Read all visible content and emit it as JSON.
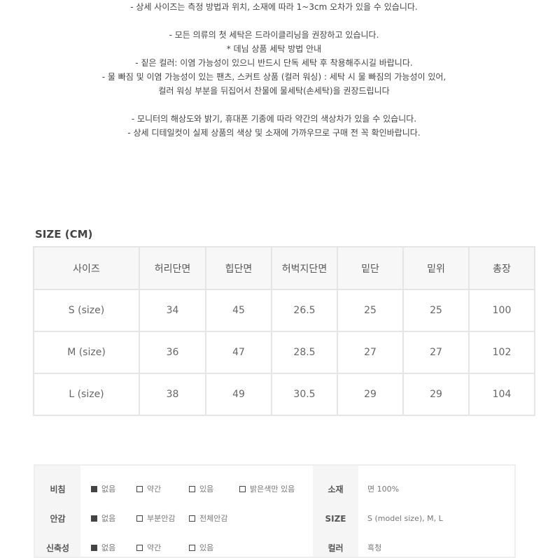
{
  "notes": [
    "- 상세 사이즈는 측정 방법과 위치, 소재에 따라 1~3cm 오차가 있을 수 있습니다.",
    "",
    "- 모든 의류의 첫 세탁은 드라이클리닝을 권장하고 있습니다.",
    "* 데님 상품 세탁 방법 안내",
    "- 짙은 컬러: 이염 가능성이 있으니 반드시 단독 세탁 후 착용해주시길 바랍니다.",
    "- 물 빠짐 및 이염 가능성이 있는 팬츠, 스커트 상품 (컬러 워싱) : 세탁 시 물 빠짐의 가능성이 있어,",
    "컬러 워싱 부분을 뒤집어서 찬물에 물세탁(손세탁)을 권장드립니다",
    "",
    "- 모니터의 해상도와 밝기, 휴대폰 기종에 따라 약간의 색상차가 있을 수 있습니다.",
    "- 상세 디테일컷이 실제 상품의 색상 및 소재에 가까우므로 구매 전 꼭 확인바랍니다."
  ],
  "size_title": "SIZE (CM)",
  "size_table": {
    "headers": [
      "사이즈",
      "허리단면",
      "힙단면",
      "허벅지단면",
      "밑단",
      "밑위",
      "총장"
    ],
    "rows": [
      [
        "S (size)",
        "34",
        "45",
        "26.5",
        "25",
        "25",
        "100"
      ],
      [
        "M (size)",
        "36",
        "47",
        "28.5",
        "27",
        "27",
        "102"
      ],
      [
        "L (size)",
        "38",
        "49",
        "30.5",
        "29",
        "29",
        "104"
      ]
    ]
  },
  "info": {
    "rows": [
      {
        "label": "비침",
        "options": [
          {
            "text": "없음",
            "checked": true
          },
          {
            "text": "약간",
            "checked": false
          },
          {
            "text": "있음",
            "checked": false
          },
          {
            "text": "밝은색만 있음",
            "checked": false
          }
        ],
        "key": "소재",
        "value": "면 100%"
      },
      {
        "label": "안감",
        "options": [
          {
            "text": "없음",
            "checked": true
          },
          {
            "text": "부분안감",
            "checked": false
          },
          {
            "text": "전체안감",
            "checked": false
          }
        ],
        "key": "SIZE",
        "value": "S (model size), M, L"
      },
      {
        "label": "신축성",
        "options": [
          {
            "text": "없음",
            "checked": true
          },
          {
            "text": "약간",
            "checked": false
          },
          {
            "text": "있음",
            "checked": false
          }
        ],
        "key": "컬러",
        "value": "흑청"
      }
    ]
  }
}
